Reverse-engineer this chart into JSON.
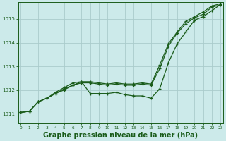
{
  "background_color": "#cceaea",
  "grid_color": "#aacccc",
  "line_color": "#1a5c1a",
  "xlabel": "Graphe pression niveau de la mer (hPa)",
  "xlabel_fontsize": 7.0,
  "ylabel_ticks": [
    1011,
    1012,
    1013,
    1014,
    1015
  ],
  "xticks": [
    0,
    1,
    2,
    3,
    4,
    5,
    6,
    7,
    8,
    9,
    10,
    11,
    12,
    13,
    14,
    15,
    16,
    17,
    18,
    19,
    20,
    21,
    22,
    23
  ],
  "ylim": [
    1010.6,
    1015.7
  ],
  "xlim": [
    -0.3,
    23.3
  ],
  "series1": [
    1011.05,
    1011.1,
    1011.5,
    1011.65,
    1011.85,
    1012.05,
    1012.2,
    1012.3,
    1012.3,
    1012.25,
    1012.2,
    1012.25,
    1012.2,
    1012.2,
    1012.25,
    1012.2,
    1012.9,
    1013.85,
    1014.4,
    1014.8,
    1015.05,
    1015.2,
    1015.5,
    1015.6
  ],
  "series2": [
    1011.05,
    1011.1,
    1011.5,
    1011.65,
    1011.9,
    1012.1,
    1012.3,
    1012.35,
    1012.35,
    1012.3,
    1012.25,
    1012.3,
    1012.25,
    1012.25,
    1012.3,
    1012.25,
    1013.05,
    1013.95,
    1014.45,
    1014.9,
    1015.1,
    1015.3,
    1015.55,
    1015.65
  ],
  "series3": [
    1011.05,
    1011.1,
    1011.5,
    1011.65,
    1011.85,
    1012.0,
    1012.2,
    1012.35,
    1011.85,
    1011.85,
    1011.85,
    1011.9,
    1011.8,
    1011.75,
    1011.75,
    1011.65,
    1012.05,
    1013.15,
    1013.95,
    1014.45,
    1014.95,
    1015.1,
    1015.35,
    1015.62
  ]
}
